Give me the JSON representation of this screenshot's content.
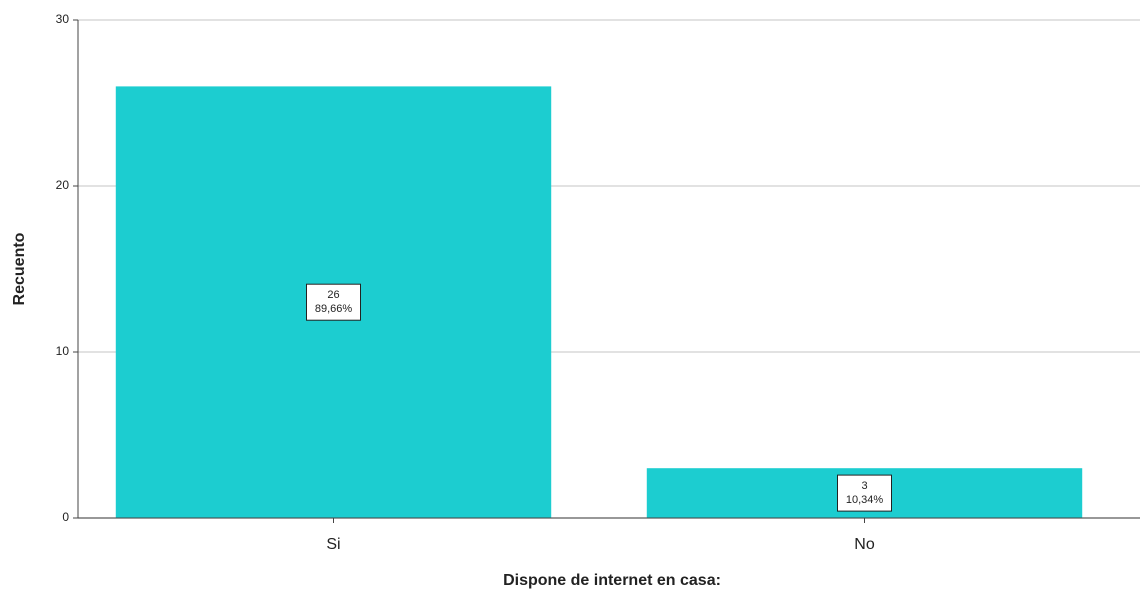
{
  "chart_data": {
    "type": "bar",
    "ylabel": "Recuento",
    "xlabel": "Dispone de internet en casa:",
    "categories": [
      "Si",
      "No"
    ],
    "values": [
      26,
      3
    ],
    "percent_labels": [
      "89,66%",
      "10,34%"
    ],
    "color": "#1ccdd0",
    "ylim": [
      0,
      30
    ],
    "yticks": [
      0,
      10,
      20,
      30
    ],
    "grid": true
  }
}
